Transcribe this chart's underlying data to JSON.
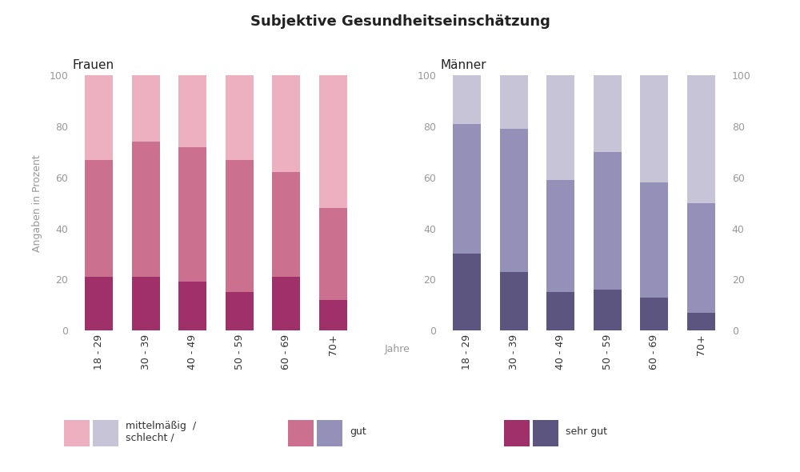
{
  "title": "Subjektive Gesundheitseinschätzung",
  "categories": [
    "18 - 29",
    "30 - 39",
    "40 - 49",
    "50 - 59",
    "60 - 69",
    "70+"
  ],
  "frauen": {
    "label": "Frauen",
    "sehr_gut": [
      21,
      21,
      19,
      15,
      21,
      12
    ],
    "gut": [
      46,
      53,
      53,
      52,
      41,
      36
    ],
    "mittel_schlecht": [
      33,
      26,
      28,
      33,
      38,
      52
    ]
  },
  "maenner": {
    "label": "Männer",
    "sehr_gut": [
      30,
      23,
      15,
      16,
      13,
      7
    ],
    "gut": [
      51,
      56,
      44,
      54,
      45,
      43
    ],
    "mittel_schlecht": [
      19,
      21,
      41,
      30,
      42,
      50
    ]
  },
  "colors_frauen": {
    "sehr_gut": "#a0306a",
    "gut": "#cc7090",
    "mittel_schlecht": "#edb0c0"
  },
  "colors_maenner": {
    "sehr_gut": "#5c5580",
    "gut": "#9590b8",
    "mittel_schlecht": "#c8c4d8"
  },
  "ylabel": "Angaben in Prozent",
  "xlabel_middle": "Jahre",
  "legend_labels": {
    "mittel_schlecht": "mittelmäßig  /\nschlecht /",
    "gut": "gut",
    "sehr_gut": "sehr gut"
  },
  "background_color": "#ffffff",
  "axes_bg": "#ffffff",
  "ylim": [
    0,
    100
  ],
  "yticks": [
    0,
    20,
    40,
    60,
    80,
    100
  ]
}
